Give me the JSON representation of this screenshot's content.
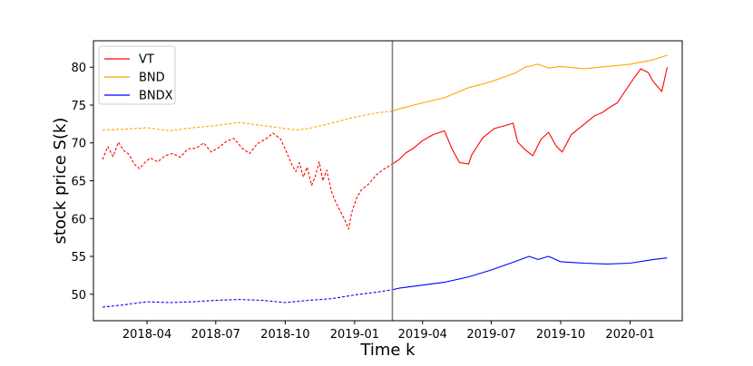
{
  "chart_data": {
    "type": "line",
    "title": "",
    "xlabel": "Time k",
    "ylabel": "stock price S(k)",
    "x_range": [
      "2018-01-20",
      "2020-03-10"
    ],
    "ylim": [
      46.5,
      83.5
    ],
    "x_ticks": [
      "2018-04-01",
      "2018-07-01",
      "2018-10-01",
      "2019-01-01",
      "2019-04-01",
      "2019-07-01",
      "2019-10-01",
      "2020-01-01"
    ],
    "x_tick_labels": [
      "2018-04",
      "2018-07",
      "2018-10",
      "2019-01",
      "2019-04",
      "2019-07",
      "2019-10",
      "2020-01"
    ],
    "y_ticks": [
      50,
      55,
      60,
      65,
      70,
      75,
      80
    ],
    "y_tick_labels": [
      "50",
      "55",
      "60",
      "65",
      "70",
      "75",
      "80"
    ],
    "grid": false,
    "legend_position": "top-left",
    "split_date": "2019-02-20",
    "split_note": "dashed before the vertical line, solid after",
    "series": [
      {
        "name": "VT",
        "color": "#ff0000",
        "x": [
          "2018-02-01",
          "2018-02-08",
          "2018-02-15",
          "2018-02-22",
          "2018-03-01",
          "2018-03-08",
          "2018-03-15",
          "2018-03-22",
          "2018-03-29",
          "2018-04-05",
          "2018-04-15",
          "2018-04-25",
          "2018-05-05",
          "2018-05-15",
          "2018-05-25",
          "2018-06-05",
          "2018-06-15",
          "2018-06-25",
          "2018-07-05",
          "2018-07-15",
          "2018-07-25",
          "2018-08-05",
          "2018-08-15",
          "2018-08-25",
          "2018-09-05",
          "2018-09-15",
          "2018-09-25",
          "2018-10-01",
          "2018-10-10",
          "2018-10-15",
          "2018-10-20",
          "2018-10-25",
          "2018-10-30",
          "2018-11-05",
          "2018-11-10",
          "2018-11-15",
          "2018-11-20",
          "2018-11-25",
          "2018-12-01",
          "2018-12-05",
          "2018-12-10",
          "2018-12-15",
          "2018-12-20",
          "2018-12-24",
          "2018-12-28",
          "2019-01-04",
          "2019-01-10",
          "2019-01-20",
          "2019-01-30",
          "2019-02-10",
          "2019-02-20",
          "2019-03-01",
          "2019-03-10",
          "2019-03-20",
          "2019-04-01",
          "2019-04-15",
          "2019-04-30",
          "2019-05-10",
          "2019-05-20",
          "2019-06-01",
          "2019-06-05",
          "2019-06-20",
          "2019-07-05",
          "2019-07-20",
          "2019-07-30",
          "2019-08-05",
          "2019-08-15",
          "2019-08-25",
          "2019-09-05",
          "2019-09-15",
          "2019-09-25",
          "2019-10-03",
          "2019-10-15",
          "2019-10-25",
          "2019-11-05",
          "2019-11-15",
          "2019-11-25",
          "2019-12-05",
          "2019-12-15",
          "2019-12-25",
          "2020-01-05",
          "2020-01-15",
          "2020-01-25",
          "2020-01-31",
          "2020-02-05",
          "2020-02-12",
          "2020-02-19"
        ],
        "values": [
          67.8,
          69.5,
          68.2,
          70.1,
          69.0,
          68.5,
          67.2,
          66.6,
          67.4,
          68.0,
          67.5,
          68.3,
          68.6,
          68.1,
          69.2,
          69.3,
          70.0,
          68.8,
          69.4,
          70.2,
          70.6,
          69.3,
          68.6,
          69.9,
          70.5,
          71.3,
          70.5,
          69.2,
          67.1,
          66.2,
          67.4,
          65.5,
          66.8,
          64.4,
          65.6,
          67.5,
          65.0,
          66.4,
          63.7,
          62.6,
          61.6,
          60.6,
          59.6,
          58.6,
          60.8,
          62.8,
          63.8,
          64.6,
          65.8,
          66.6,
          67.2,
          67.8,
          68.7,
          69.3,
          70.3,
          71.1,
          71.6,
          69.2,
          67.4,
          67.2,
          68.4,
          70.7,
          71.9,
          72.3,
          72.6,
          70.1,
          69.1,
          68.3,
          70.5,
          71.4,
          69.6,
          68.8,
          71.1,
          71.9,
          72.8,
          73.6,
          74.0,
          74.7,
          75.3,
          76.8,
          78.4,
          79.8,
          79.3,
          78.2,
          77.6,
          76.8,
          80.0
        ]
      },
      {
        "name": "BND",
        "color": "#ffa500",
        "x": [
          "2018-02-01",
          "2018-03-01",
          "2018-04-01",
          "2018-05-01",
          "2018-06-01",
          "2018-07-01",
          "2018-08-01",
          "2018-09-01",
          "2018-10-01",
          "2018-10-15",
          "2018-11-01",
          "2018-12-01",
          "2019-01-01",
          "2019-02-01",
          "2019-02-20",
          "2019-03-01",
          "2019-04-01",
          "2019-05-01",
          "2019-06-01",
          "2019-07-01",
          "2019-08-01",
          "2019-08-15",
          "2019-09-01",
          "2019-09-15",
          "2019-10-01",
          "2019-11-01",
          "2019-12-01",
          "2020-01-01",
          "2020-02-01",
          "2020-02-19"
        ],
        "values": [
          71.7,
          71.8,
          72.0,
          71.6,
          72.0,
          72.3,
          72.7,
          72.3,
          71.9,
          71.7,
          71.9,
          72.6,
          73.4,
          74.0,
          74.2,
          74.5,
          75.3,
          76.0,
          77.3,
          78.1,
          79.2,
          80.0,
          80.4,
          79.9,
          80.1,
          79.8,
          80.1,
          80.4,
          81.0,
          81.6
        ]
      },
      {
        "name": "BNDX",
        "color": "#0000ff",
        "x": [
          "2018-02-01",
          "2018-03-01",
          "2018-04-01",
          "2018-05-01",
          "2018-06-01",
          "2018-07-01",
          "2018-08-01",
          "2018-09-01",
          "2018-10-01",
          "2018-11-01",
          "2018-12-01",
          "2019-01-01",
          "2019-02-01",
          "2019-02-20",
          "2019-03-01",
          "2019-04-01",
          "2019-05-01",
          "2019-06-01",
          "2019-07-01",
          "2019-08-01",
          "2019-08-20",
          "2019-09-01",
          "2019-09-15",
          "2019-10-01",
          "2019-11-01",
          "2019-12-01",
          "2020-01-01",
          "2020-02-01",
          "2020-02-19"
        ],
        "values": [
          48.3,
          48.6,
          49.0,
          48.9,
          49.0,
          49.2,
          49.3,
          49.2,
          48.9,
          49.2,
          49.4,
          49.9,
          50.3,
          50.6,
          50.8,
          51.2,
          51.6,
          52.3,
          53.2,
          54.3,
          55.0,
          54.6,
          55.0,
          54.3,
          54.1,
          54.0,
          54.1,
          54.6,
          54.8
        ]
      }
    ]
  }
}
